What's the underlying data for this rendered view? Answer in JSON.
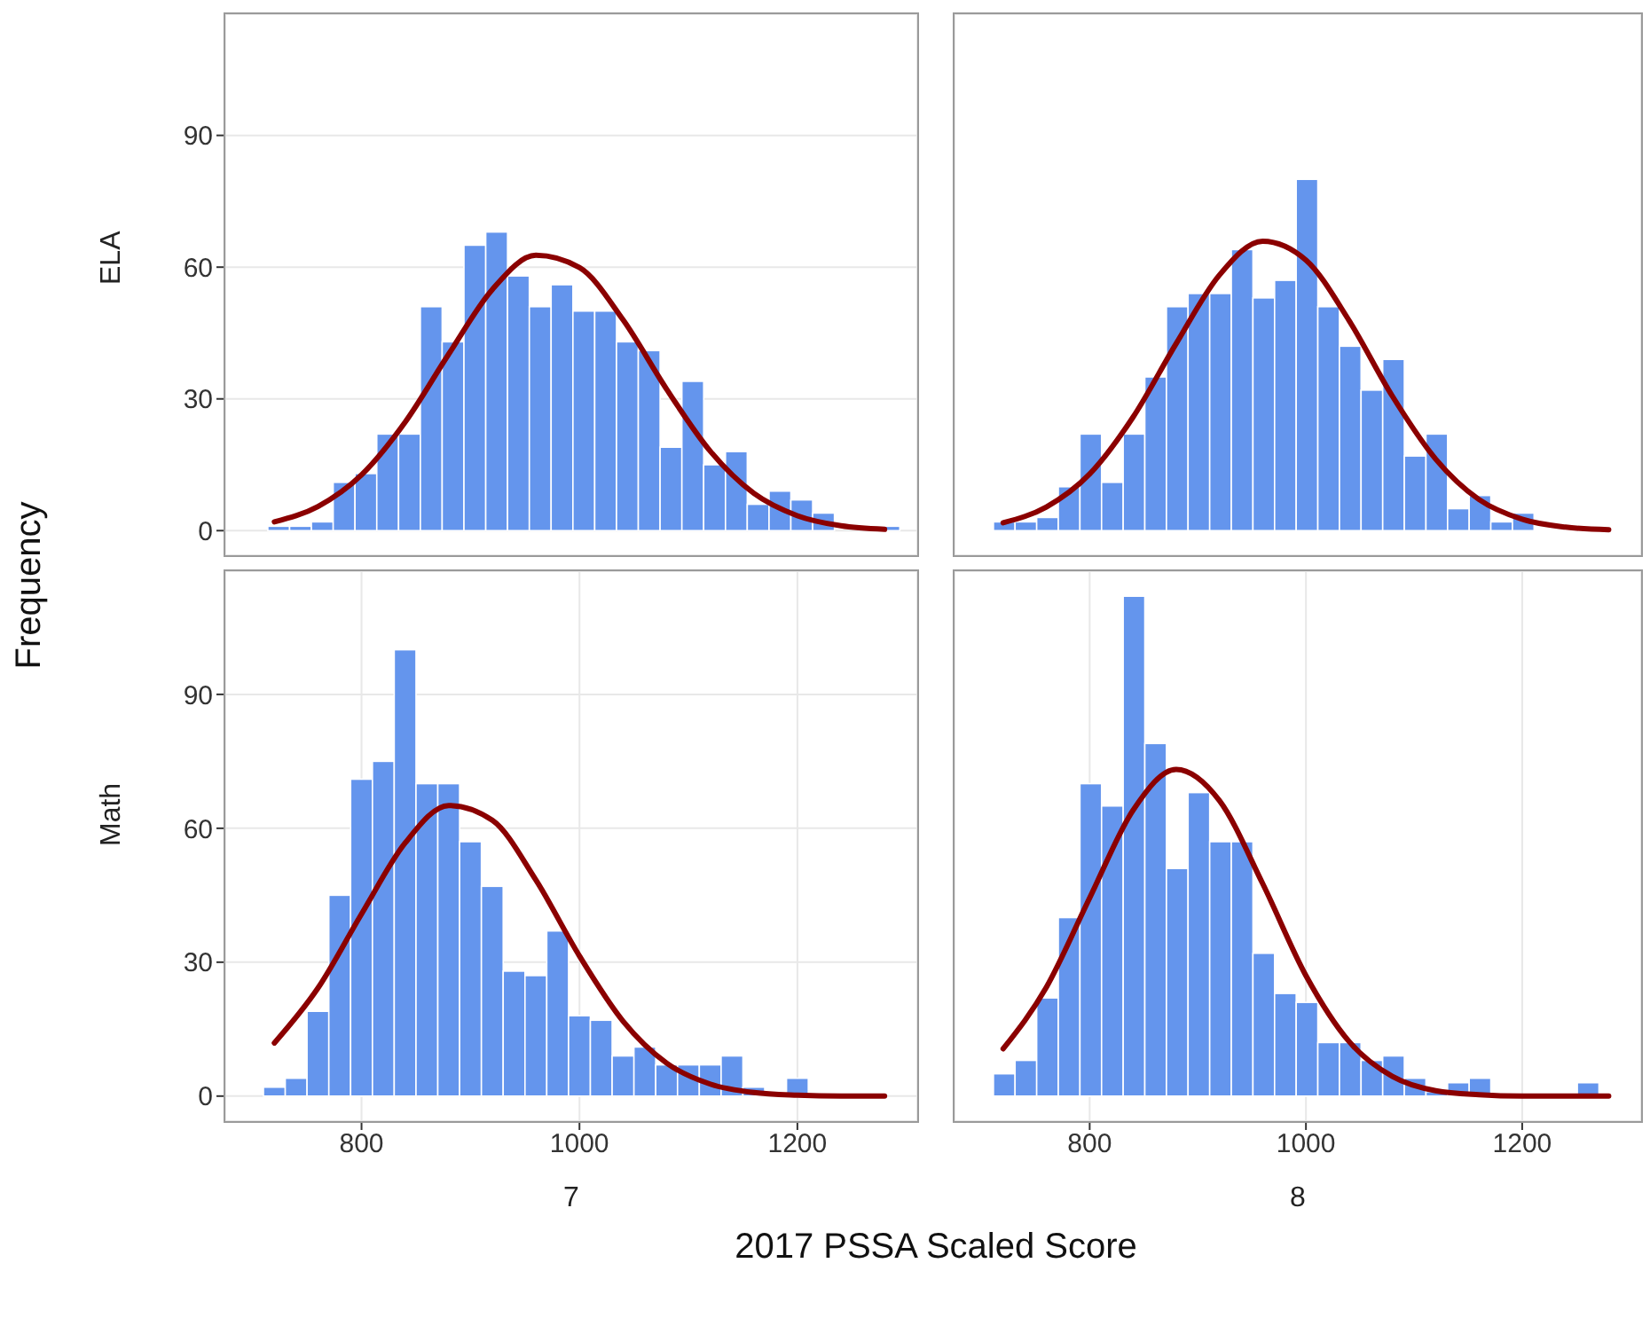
{
  "chart_data": [
    {
      "type": "histogram",
      "ylabel": "ELA",
      "annotations": [
        "Frequency",
        "2017 PSSA Scaled Score"
      ],
      "xlim": [
        675,
        1310
      ],
      "xticks": [
        800,
        1000,
        1200
      ],
      "ylim": [
        -5.6,
        117.6
      ],
      "yticks": [
        0,
        30,
        60,
        90
      ],
      "grid": true,
      "tick_labels": "y",
      "marker": "none",
      "series": [
        {
          "color": "#6495ed",
          "bins": [
            714,
            734,
            754,
            774,
            794,
            814,
            834,
            854,
            874,
            894,
            914,
            934,
            954,
            974,
            994,
            1014,
            1034,
            1054,
            1074,
            1094,
            1114,
            1134,
            1154,
            1174,
            1194,
            1214,
            1234,
            1254,
            1274,
            1294
          ],
          "values": [
            1,
            1,
            2,
            11,
            13,
            22,
            22,
            51,
            43,
            65,
            68,
            58,
            51,
            56,
            50,
            50,
            43,
            41,
            19,
            34,
            15,
            18,
            6,
            9,
            7,
            4,
            null,
            null,
            1
          ]
        },
        {
          "type": "line",
          "color": "#8b0000",
          "x": [
            720,
            760,
            800,
            840,
            880,
            920,
            960,
            1000,
            1040,
            1080,
            1120,
            1160,
            1200,
            1240,
            1280
          ],
          "values": [
            2,
            5.5,
            12.7,
            24.7,
            40.2,
            54.9,
            62.7,
            59.9,
            48,
            32.2,
            18.1,
            8.5,
            3.4,
            1.1,
            0.3
          ]
        }
      ]
    },
    {
      "type": "histogram",
      "xlim": [
        675,
        1310
      ],
      "xticks": [
        800,
        1000,
        1200
      ],
      "ylim": [
        -5.6,
        117.6
      ],
      "yticks": [
        0,
        30,
        60,
        90
      ],
      "grid": true,
      "tick_labels": false,
      "marker": "none",
      "series": [
        {
          "color": "#6495ed",
          "bins": [
            711,
            731,
            751,
            771,
            791,
            811,
            831,
            851,
            871,
            891,
            911,
            931,
            951,
            971,
            991,
            1011,
            1031,
            1051,
            1071,
            1091,
            1111,
            1131,
            1151,
            1171,
            1191,
            1211
          ],
          "values": [
            2,
            2,
            3,
            10,
            22,
            11,
            22,
            35,
            51,
            54,
            54,
            64,
            53,
            57,
            80,
            51,
            42,
            32,
            39,
            17,
            22,
            5,
            8,
            2,
            4
          ]
        },
        {
          "type": "line",
          "color": "#8b0000",
          "x": [
            720,
            760,
            800,
            840,
            880,
            920,
            960,
            1000,
            1040,
            1080,
            1120,
            1160,
            1200,
            1240,
            1280
          ],
          "values": [
            1.8,
            5.4,
            12.9,
            25.8,
            42.6,
            58.2,
            65.9,
            61.6,
            47.8,
            30.6,
            16.3,
            7.1,
            2.6,
            0.8,
            0.2
          ]
        }
      ]
    },
    {
      "type": "histogram",
      "ylabel": "Math",
      "xlabel": "7",
      "xlim": [
        675,
        1310
      ],
      "xticks": [
        800,
        1000,
        1200
      ],
      "ylim": [
        -5.6,
        117.6
      ],
      "yticks": [
        0,
        30,
        60,
        90
      ],
      "grid": true,
      "marker": "none",
      "series": [
        {
          "color": "#6495ed",
          "bins": [
            710,
            730,
            750,
            770,
            790,
            810,
            830,
            850,
            870,
            890,
            910,
            930,
            950,
            970,
            990,
            1010,
            1030,
            1050,
            1070,
            1090,
            1110,
            1130,
            1150,
            1170,
            1190,
            1210
          ],
          "values": [
            2,
            4,
            19,
            45,
            71,
            75,
            100,
            70,
            70,
            57,
            47,
            28,
            27,
            37,
            18,
            17,
            9,
            11,
            7,
            7,
            7,
            9,
            2,
            0,
            4
          ]
        },
        {
          "type": "line",
          "color": "#8b0000",
          "x": [
            720,
            760,
            800,
            840,
            880,
            920,
            960,
            1000,
            1040,
            1080,
            1120,
            1160,
            1200,
            1240,
            1280
          ],
          "values": [
            11.9,
            24.2,
            40.8,
            56.7,
            65.1,
            61.8,
            48.4,
            31.4,
            16.8,
            7.4,
            2.7,
            0.8,
            0.2,
            0,
            0
          ]
        }
      ]
    },
    {
      "type": "histogram",
      "xlabel": "8",
      "xlim": [
        675,
        1310
      ],
      "xticks": [
        800,
        1000,
        1200
      ],
      "ylim": [
        -5.6,
        117.6
      ],
      "yticks": [
        0,
        30,
        60,
        90
      ],
      "grid": true,
      "tick_labels": "x",
      "marker": "none",
      "series": [
        {
          "color": "#6495ed",
          "bins": [
            711,
            731,
            751,
            771,
            791,
            811,
            831,
            851,
            871,
            891,
            911,
            931,
            951,
            971,
            991,
            1011,
            1031,
            1051,
            1071,
            1091,
            1111,
            1131,
            1151,
            1171,
            1191,
            1211,
            1231,
            1251,
            1271
          ],
          "values": [
            5,
            8,
            22,
            40,
            70,
            65,
            112,
            79,
            51,
            68,
            57,
            57,
            32,
            23,
            21,
            12,
            12,
            8,
            9,
            4,
            1,
            3,
            4,
            0,
            0,
            0,
            0,
            3
          ]
        },
        {
          "type": "line",
          "color": "#8b0000",
          "x": [
            720,
            760,
            800,
            840,
            880,
            920,
            960,
            1000,
            1040,
            1080,
            1120,
            1160,
            1200,
            1240,
            1280
          ],
          "values": [
            10.6,
            24.4,
            44.4,
            64,
            73.2,
            66.2,
            47.6,
            27,
            12.2,
            4.4,
            1.2,
            0.3,
            0,
            0,
            0
          ]
        }
      ]
    }
  ]
}
